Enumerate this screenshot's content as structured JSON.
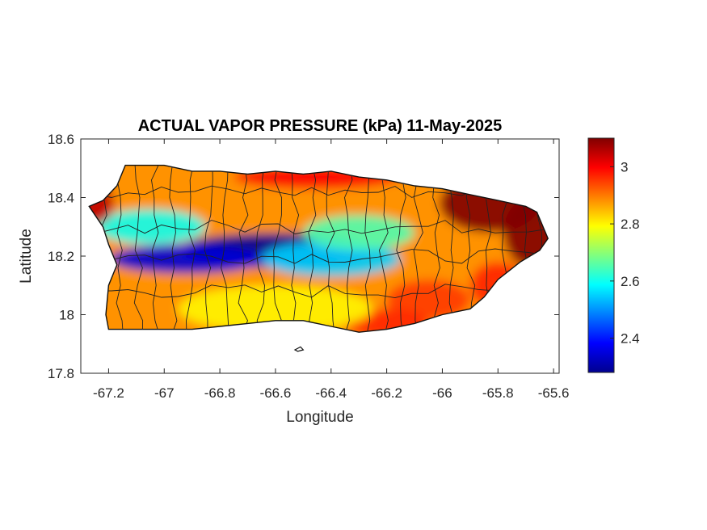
{
  "chart_data": {
    "type": "heatmap",
    "title": "ACTUAL VAPOR PRESSURE (kPa) 11-May-2025",
    "xlabel": "Longitude",
    "ylabel": "Latitude",
    "xlim": [
      -67.3,
      -65.58
    ],
    "ylim": [
      17.8,
      18.6
    ],
    "xticks": [
      -67.2,
      -67,
      -66.8,
      -66.6,
      -66.4,
      -66.2,
      -66,
      -65.8,
      -65.6
    ],
    "xtick_labels": [
      "-67.2",
      "-67",
      "-66.8",
      "-66.6",
      "-66.4",
      "-66.2",
      "-66",
      "-65.8",
      "-65.6"
    ],
    "yticks": [
      17.8,
      18,
      18.2,
      18.4,
      18.6
    ],
    "ytick_labels": [
      "17.8",
      "18",
      "18.2",
      "18.4",
      "18.6"
    ],
    "colorbar": {
      "colormap": "jet",
      "range": [
        2.28,
        3.1
      ],
      "ticks": [
        2.4,
        2.6,
        2.8,
        3
      ],
      "tick_labels": [
        "2.4",
        "2.6",
        "2.8",
        "3"
      ]
    },
    "island_outline": [
      [
        -67.27,
        18.37
      ],
      [
        -67.22,
        18.39
      ],
      [
        -67.17,
        18.44
      ],
      [
        -67.14,
        18.51
      ],
      [
        -67.0,
        18.51
      ],
      [
        -66.9,
        18.49
      ],
      [
        -66.8,
        18.49
      ],
      [
        -66.7,
        18.48
      ],
      [
        -66.6,
        18.49
      ],
      [
        -66.5,
        18.48
      ],
      [
        -66.4,
        18.49
      ],
      [
        -66.3,
        18.47
      ],
      [
        -66.2,
        18.46
      ],
      [
        -66.1,
        18.44
      ],
      [
        -66.0,
        18.43
      ],
      [
        -65.9,
        18.41
      ],
      [
        -65.8,
        18.39
      ],
      [
        -65.7,
        18.37
      ],
      [
        -65.66,
        18.35
      ],
      [
        -65.62,
        18.26
      ],
      [
        -65.65,
        18.22
      ],
      [
        -65.72,
        18.18
      ],
      [
        -65.8,
        18.12
      ],
      [
        -65.85,
        18.06
      ],
      [
        -65.9,
        18.02
      ],
      [
        -66.0,
        18.0
      ],
      [
        -66.1,
        17.97
      ],
      [
        -66.2,
        17.95
      ],
      [
        -66.3,
        17.94
      ],
      [
        -66.4,
        17.96
      ],
      [
        -66.5,
        17.98
      ],
      [
        -66.6,
        17.98
      ],
      [
        -66.7,
        17.97
      ],
      [
        -66.8,
        17.96
      ],
      [
        -66.9,
        17.95
      ],
      [
        -67.0,
        17.95
      ],
      [
        -67.1,
        17.95
      ],
      [
        -67.2,
        17.95
      ],
      [
        -67.21,
        18.0
      ],
      [
        -67.2,
        18.1
      ],
      [
        -67.17,
        18.17
      ],
      [
        -67.2,
        18.24
      ],
      [
        -67.22,
        18.3
      ],
      [
        -67.27,
        18.37
      ]
    ],
    "small_islands": [
      [
        [
          -66.53,
          17.88
        ],
        [
          -66.51,
          17.89
        ],
        [
          -66.5,
          17.88
        ],
        [
          -66.52,
          17.875
        ]
      ]
    ],
    "features": [
      {
        "lon": -66.6,
        "lat": 18.22,
        "value": 2.3,
        "spread_lon": 0.35,
        "spread_lat": 0.06
      },
      {
        "lon": -66.92,
        "lat": 18.19,
        "value": 2.35,
        "spread_lon": 0.28,
        "spread_lat": 0.05
      },
      {
        "lon": -66.4,
        "lat": 18.19,
        "value": 2.55,
        "spread_lon": 0.25,
        "spread_lat": 0.06
      },
      {
        "lon": -67.05,
        "lat": 18.3,
        "value": 2.6,
        "spread_lon": 0.2,
        "spread_lat": 0.06
      },
      {
        "lon": -66.3,
        "lat": 18.28,
        "value": 2.65,
        "spread_lon": 0.2,
        "spread_lat": 0.06
      },
      {
        "lon": -65.83,
        "lat": 18.38,
        "value": 3.1,
        "spread_lon": 0.18,
        "spread_lat": 0.1
      },
      {
        "lon": -65.68,
        "lat": 18.28,
        "value": 3.1,
        "spread_lon": 0.1,
        "spread_lat": 0.12
      },
      {
        "lon": -67.25,
        "lat": 18.38,
        "value": 3.05,
        "spread_lon": 0.07,
        "spread_lat": 0.07
      },
      {
        "lon": -66.45,
        "lat": 18.47,
        "value": 3.0,
        "spread_lon": 0.3,
        "spread_lat": 0.04
      },
      {
        "lon": -66.05,
        "lat": 18.05,
        "value": 2.95,
        "spread_lon": 0.15,
        "spread_lat": 0.07
      },
      {
        "lon": -66.2,
        "lat": 17.97,
        "value": 2.97,
        "spread_lon": 0.15,
        "spread_lat": 0.05
      },
      {
        "lon": -65.8,
        "lat": 18.1,
        "value": 2.97,
        "spread_lon": 0.1,
        "spread_lat": 0.08
      },
      {
        "lon": -66.6,
        "lat": 18.02,
        "value": 2.8,
        "spread_lon": 0.35,
        "spread_lat": 0.08
      }
    ]
  }
}
